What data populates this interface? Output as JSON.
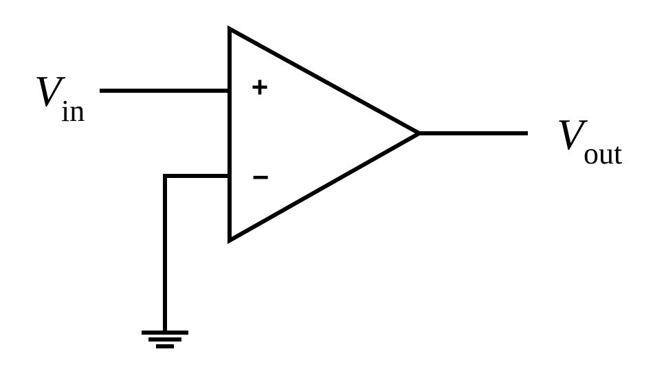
{
  "colors": {
    "ink": "#000000",
    "background": "#ffffff"
  },
  "labels": {
    "input": {
      "main": "V",
      "subscript": "in"
    },
    "output": {
      "main": "V",
      "subscript": "out"
    },
    "non_inverting_sign": "+",
    "inverting_sign": "−"
  },
  "icons": {
    "amplifier": "op-amp-triangle-icon",
    "ground": "ground-icon"
  }
}
